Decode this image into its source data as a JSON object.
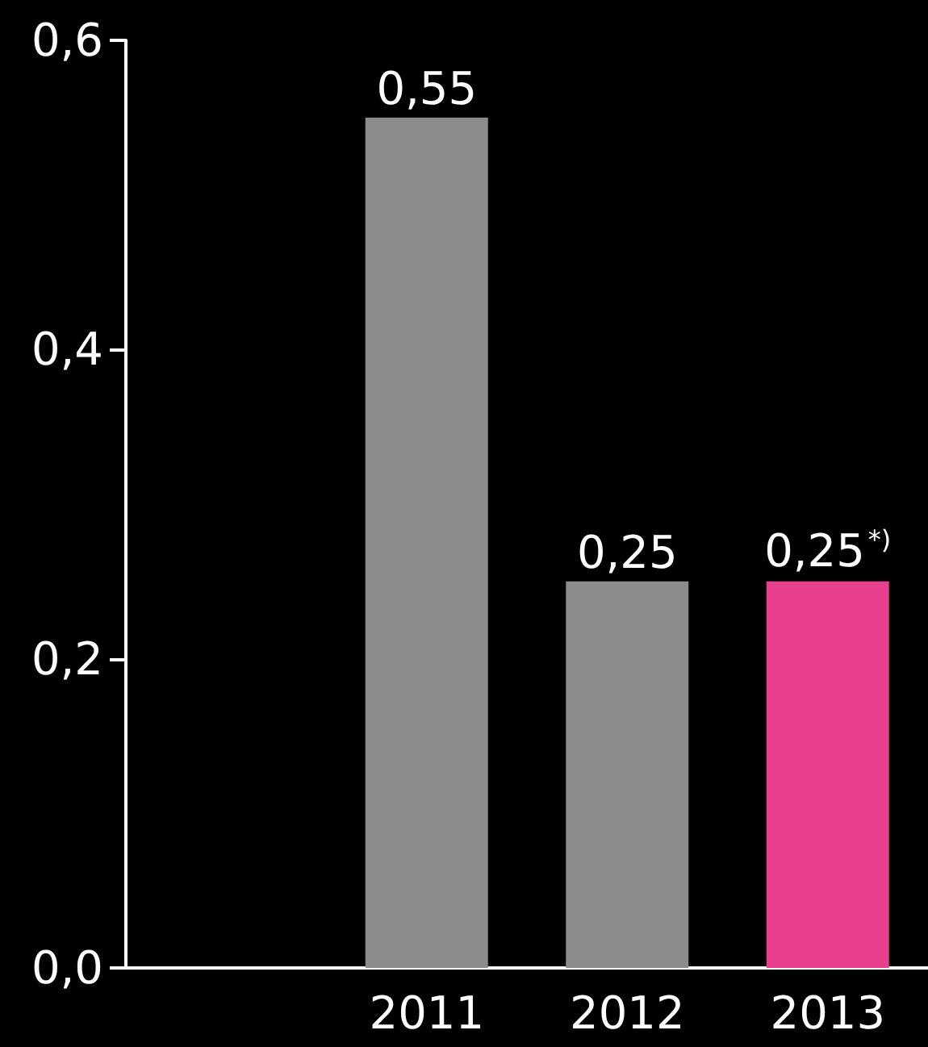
{
  "chart_data": {
    "type": "bar",
    "categories": [
      null,
      "2011",
      "2012",
      "2013"
    ],
    "values": [
      null,
      0.55,
      0.25,
      0.25
    ],
    "colors": [
      "#8c8c8c",
      "#8c8c8c",
      "#8c8c8c",
      "#e8408f"
    ],
    "value_labels": [
      null,
      "0,55",
      "0,25",
      "0,25$^{*)}$"
    ],
    "ylim": [
      0,
      0.6
    ],
    "yticks": [
      {
        "value": 0,
        "label": "0,0"
      },
      {
        "value": 0.2,
        "label": "0,2"
      },
      {
        "value": 0.4,
        "label": "0,4"
      },
      {
        "value": 0.6,
        "label": "0,6"
      }
    ],
    "grid": false
  }
}
